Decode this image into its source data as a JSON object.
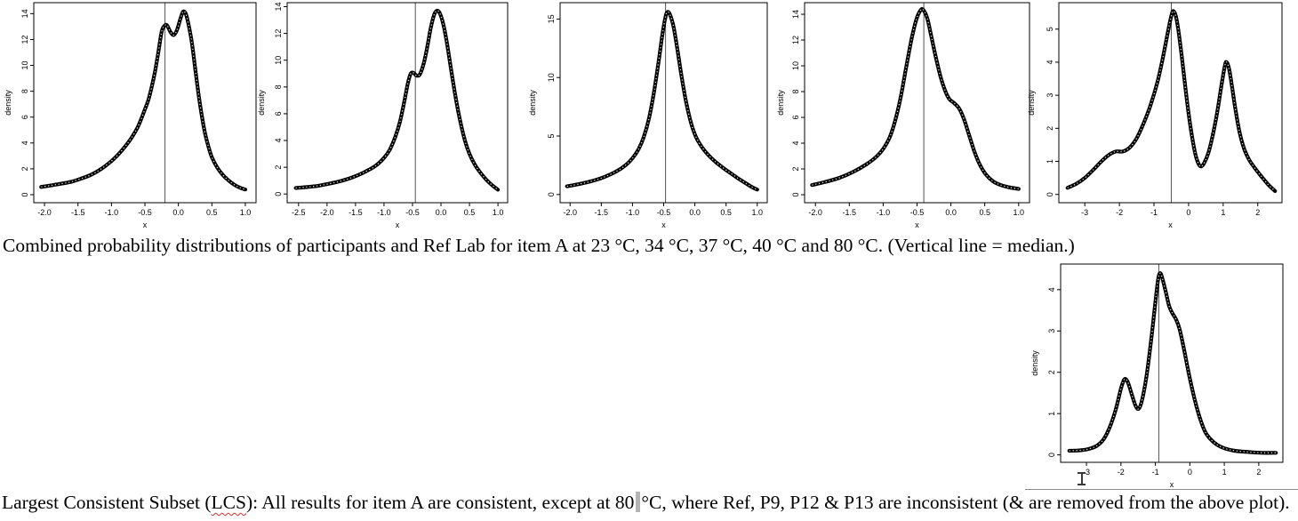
{
  "document": {
    "background": "#ffffff",
    "caption_top": "Combined probability distributions of participants and Ref Lab for item A at 23 °C, 34 °C, 37 °C, 40 °C and 80 °C. (Vertical line = median.)",
    "caption_bottom": {
      "part1": "Largest Consistent Subset (",
      "misspelled_word": "LCS",
      "part2": "): All results for item A are consistent, except at 80",
      "part3": "°C, where Ref, P9, P12 & P13 are inconsistent (& are removed from the above plot)."
    },
    "spellcheck_color": "#e03030",
    "cursor_color": "#b4b4b4"
  },
  "plot_style": {
    "curve_color": "#000000",
    "median_line_color": "#555555",
    "box_color": "#000000",
    "label_color": "#000000"
  },
  "chart_data": [
    {
      "id": "density-item-a-23c",
      "temperature": "23 °C",
      "type": "line",
      "xlabel": "x",
      "ylabel": "density",
      "xlim": [
        -2.16,
        1.16
      ],
      "ylim": [
        -0.62,
        14.85
      ],
      "xticks": {
        "values": [
          -2.0,
          -1.5,
          -1.0,
          -0.5,
          0.0,
          0.5,
          1.0
        ],
        "labels": [
          "-2.0",
          "-1.5",
          "-1.0",
          "-0.5",
          "0.0",
          "0.5",
          "1.0"
        ]
      },
      "yticks": {
        "values": [
          0,
          2,
          4,
          6,
          8,
          10,
          12,
          14
        ],
        "labels": [
          "0",
          "2",
          "4",
          "6",
          "8",
          "10",
          "12",
          "14"
        ]
      },
      "median_x": -0.2,
      "points": [
        [
          -2.05,
          0.6
        ],
        [
          -1.9,
          0.72
        ],
        [
          -1.75,
          0.85
        ],
        [
          -1.6,
          1.0
        ],
        [
          -1.45,
          1.25
        ],
        [
          -1.3,
          1.55
        ],
        [
          -1.15,
          2.0
        ],
        [
          -1.0,
          2.6
        ],
        [
          -0.9,
          3.1
        ],
        [
          -0.8,
          3.7
        ],
        [
          -0.7,
          4.4
        ],
        [
          -0.6,
          5.3
        ],
        [
          -0.5,
          6.6
        ],
        [
          -0.45,
          7.3
        ],
        [
          -0.4,
          8.3
        ],
        [
          -0.35,
          9.5
        ],
        [
          -0.3,
          11.0
        ],
        [
          -0.25,
          12.6
        ],
        [
          -0.21,
          13.05
        ],
        [
          -0.17,
          13.1
        ],
        [
          -0.12,
          12.6
        ],
        [
          -0.07,
          12.35
        ],
        [
          -0.02,
          12.75
        ],
        [
          0.03,
          13.6
        ],
        [
          0.07,
          14.15
        ],
        [
          0.11,
          14.0
        ],
        [
          0.15,
          13.2
        ],
        [
          0.2,
          11.8
        ],
        [
          0.25,
          9.8
        ],
        [
          0.3,
          7.8
        ],
        [
          0.35,
          6.1
        ],
        [
          0.4,
          4.7
        ],
        [
          0.45,
          3.7
        ],
        [
          0.5,
          2.9
        ],
        [
          0.58,
          2.1
        ],
        [
          0.66,
          1.55
        ],
        [
          0.75,
          1.1
        ],
        [
          0.85,
          0.72
        ],
        [
          0.93,
          0.52
        ],
        [
          1.0,
          0.4
        ]
      ]
    },
    {
      "id": "density-item-a-34c",
      "temperature": "34 °C",
      "type": "line",
      "xlabel": "x",
      "ylabel": "density",
      "xlim": [
        -2.7,
        1.17
      ],
      "ylim": [
        -0.65,
        14.3
      ],
      "xticks": {
        "values": [
          -2.5,
          -2.0,
          -1.5,
          -1.0,
          -0.5,
          0.0,
          0.5,
          1.0
        ],
        "labels": [
          "-2.5",
          "-2.0",
          "-1.5",
          "-1.0",
          "-0.5",
          "0.0",
          "0.5",
          "1.0"
        ]
      },
      "yticks": {
        "values": [
          0,
          2,
          4,
          6,
          8,
          10,
          12,
          14
        ],
        "labels": [
          "0",
          "2",
          "4",
          "6",
          "8",
          "10",
          "12",
          "14"
        ]
      },
      "median_x": -0.45,
      "points": [
        [
          -2.55,
          0.45
        ],
        [
          -2.35,
          0.52
        ],
        [
          -2.15,
          0.62
        ],
        [
          -1.95,
          0.78
        ],
        [
          -1.75,
          0.98
        ],
        [
          -1.55,
          1.25
        ],
        [
          -1.35,
          1.62
        ],
        [
          -1.15,
          2.1
        ],
        [
          -1.0,
          2.7
        ],
        [
          -0.9,
          3.3
        ],
        [
          -0.8,
          4.3
        ],
        [
          -0.72,
          5.4
        ],
        [
          -0.64,
          7.0
        ],
        [
          -0.58,
          8.3
        ],
        [
          -0.53,
          9.0
        ],
        [
          -0.48,
          9.05
        ],
        [
          -0.43,
          8.85
        ],
        [
          -0.37,
          8.95
        ],
        [
          -0.3,
          9.8
        ],
        [
          -0.24,
          11.0
        ],
        [
          -0.18,
          12.4
        ],
        [
          -0.12,
          13.4
        ],
        [
          -0.07,
          13.7
        ],
        [
          -0.02,
          13.5
        ],
        [
          0.04,
          12.7
        ],
        [
          0.1,
          11.4
        ],
        [
          0.17,
          9.5
        ],
        [
          0.25,
          7.4
        ],
        [
          0.33,
          5.6
        ],
        [
          0.42,
          4.0
        ],
        [
          0.5,
          3.0
        ],
        [
          0.6,
          2.15
        ],
        [
          0.7,
          1.55
        ],
        [
          0.8,
          1.05
        ],
        [
          0.9,
          0.65
        ],
        [
          1.0,
          0.32
        ]
      ]
    },
    {
      "id": "density-item-a-37c",
      "temperature": "37 °C",
      "type": "line",
      "xlabel": "x",
      "ylabel": "density",
      "xlim": [
        -2.16,
        1.16
      ],
      "ylim": [
        -0.7,
        16.4
      ],
      "xticks": {
        "values": [
          -2.0,
          -1.5,
          -1.0,
          -0.5,
          0.0,
          0.5,
          1.0
        ],
        "labels": [
          "-2.0",
          "-1.5",
          "-1.0",
          "-0.5",
          "0.0",
          "0.5",
          "1.0"
        ]
      },
      "yticks": {
        "values": [
          0,
          5,
          10,
          15
        ],
        "labels": [
          "0",
          "5",
          "10",
          "15"
        ]
      },
      "median_x": -0.47,
      "points": [
        [
          -2.05,
          0.7
        ],
        [
          -1.85,
          0.9
        ],
        [
          -1.65,
          1.15
        ],
        [
          -1.45,
          1.5
        ],
        [
          -1.25,
          2.0
        ],
        [
          -1.1,
          2.55
        ],
        [
          -1.0,
          3.1
        ],
        [
          -0.9,
          3.9
        ],
        [
          -0.82,
          4.9
        ],
        [
          -0.74,
          6.4
        ],
        [
          -0.66,
          8.6
        ],
        [
          -0.58,
          11.4
        ],
        [
          -0.52,
          13.7
        ],
        [
          -0.47,
          15.2
        ],
        [
          -0.44,
          15.6
        ],
        [
          -0.4,
          15.4
        ],
        [
          -0.34,
          14.3
        ],
        [
          -0.28,
          12.4
        ],
        [
          -0.21,
          10.0
        ],
        [
          -0.14,
          7.9
        ],
        [
          -0.06,
          6.1
        ],
        [
          0.02,
          4.9
        ],
        [
          0.12,
          4.0
        ],
        [
          0.22,
          3.35
        ],
        [
          0.34,
          2.75
        ],
        [
          0.46,
          2.25
        ],
        [
          0.58,
          1.8
        ],
        [
          0.7,
          1.35
        ],
        [
          0.82,
          0.95
        ],
        [
          0.92,
          0.62
        ],
        [
          1.0,
          0.42
        ]
      ]
    },
    {
      "id": "density-item-a-40c",
      "temperature": "40 °C",
      "type": "line",
      "xlabel": "x",
      "ylabel": "density",
      "xlim": [
        -2.16,
        1.16
      ],
      "ylim": [
        -0.62,
        14.9
      ],
      "xticks": {
        "values": [
          -2.0,
          -1.5,
          -1.0,
          -0.5,
          0.0,
          0.5,
          1.0
        ],
        "labels": [
          "-2.0",
          "-1.5",
          "-1.0",
          "-0.5",
          "0.0",
          "0.5",
          "1.0"
        ]
      },
      "yticks": {
        "values": [
          0,
          2,
          4,
          6,
          8,
          10,
          12,
          14
        ],
        "labels": [
          "0",
          "2",
          "4",
          "6",
          "8",
          "10",
          "12",
          "14"
        ]
      },
      "median_x": -0.4,
      "points": [
        [
          -2.05,
          0.75
        ],
        [
          -1.85,
          1.0
        ],
        [
          -1.65,
          1.3
        ],
        [
          -1.45,
          1.75
        ],
        [
          -1.25,
          2.35
        ],
        [
          -1.1,
          2.95
        ],
        [
          -1.0,
          3.55
        ],
        [
          -0.9,
          4.5
        ],
        [
          -0.82,
          5.8
        ],
        [
          -0.74,
          7.6
        ],
        [
          -0.66,
          9.9
        ],
        [
          -0.58,
          12.1
        ],
        [
          -0.51,
          13.6
        ],
        [
          -0.45,
          14.3
        ],
        [
          -0.41,
          14.35
        ],
        [
          -0.35,
          13.7
        ],
        [
          -0.29,
          12.3
        ],
        [
          -0.22,
          10.6
        ],
        [
          -0.15,
          9.1
        ],
        [
          -0.08,
          8.0
        ],
        [
          -0.02,
          7.4
        ],
        [
          0.05,
          7.1
        ],
        [
          0.12,
          6.7
        ],
        [
          0.19,
          5.9
        ],
        [
          0.27,
          4.6
        ],
        [
          0.35,
          3.3
        ],
        [
          0.43,
          2.3
        ],
        [
          0.52,
          1.55
        ],
        [
          0.62,
          1.05
        ],
        [
          0.72,
          0.78
        ],
        [
          0.85,
          0.58
        ],
        [
          1.0,
          0.45
        ]
      ]
    },
    {
      "id": "density-item-a-80c",
      "temperature": "80 °C",
      "type": "line",
      "xlabel": "x",
      "ylabel": "density",
      "xlim": [
        -3.75,
        2.7
      ],
      "ylim": [
        -0.25,
        5.8
      ],
      "xticks": {
        "values": [
          -3,
          -2,
          -1,
          0,
          1,
          2
        ],
        "labels": [
          "-3",
          "-2",
          "-1",
          "0",
          "1",
          "2"
        ]
      },
      "yticks": {
        "values": [
          0,
          1,
          2,
          3,
          4,
          5
        ],
        "labels": [
          "0",
          "1",
          "2",
          "3",
          "4",
          "5"
        ]
      },
      "median_x": -0.5,
      "points": [
        [
          -3.5,
          0.2
        ],
        [
          -3.25,
          0.32
        ],
        [
          -3.0,
          0.5
        ],
        [
          -2.75,
          0.75
        ],
        [
          -2.5,
          1.02
        ],
        [
          -2.3,
          1.2
        ],
        [
          -2.1,
          1.3
        ],
        [
          -1.9,
          1.3
        ],
        [
          -1.7,
          1.42
        ],
        [
          -1.5,
          1.7
        ],
        [
          -1.3,
          2.15
        ],
        [
          -1.1,
          2.7
        ],
        [
          -0.9,
          3.4
        ],
        [
          -0.75,
          4.1
        ],
        [
          -0.6,
          4.9
        ],
        [
          -0.5,
          5.4
        ],
        [
          -0.44,
          5.55
        ],
        [
          -0.37,
          5.4
        ],
        [
          -0.3,
          5.0
        ],
        [
          -0.2,
          4.2
        ],
        [
          -0.1,
          3.3
        ],
        [
          0.0,
          2.45
        ],
        [
          0.1,
          1.75
        ],
        [
          0.2,
          1.2
        ],
        [
          0.3,
          0.9
        ],
        [
          0.37,
          0.85
        ],
        [
          0.45,
          0.95
        ],
        [
          0.57,
          1.25
        ],
        [
          0.7,
          1.8
        ],
        [
          0.83,
          2.5
        ],
        [
          0.95,
          3.3
        ],
        [
          1.05,
          3.9
        ],
        [
          1.1,
          4.0
        ],
        [
          1.17,
          3.8
        ],
        [
          1.25,
          3.3
        ],
        [
          1.35,
          2.6
        ],
        [
          1.47,
          1.9
        ],
        [
          1.6,
          1.4
        ],
        [
          1.75,
          1.05
        ],
        [
          1.9,
          0.82
        ],
        [
          2.1,
          0.55
        ],
        [
          2.3,
          0.3
        ],
        [
          2.5,
          0.1
        ]
      ]
    },
    {
      "id": "density-item-a-80c-lcs",
      "temperature": "80 °C (LCS)",
      "type": "line",
      "xlabel": "x",
      "ylabel": "density",
      "xlim": [
        -3.75,
        2.7
      ],
      "ylim": [
        -0.18,
        4.62
      ],
      "xticks": {
        "values": [
          -3,
          -2,
          -1,
          0,
          1,
          2
        ],
        "labels": [
          "-3",
          "-2",
          "-1",
          "0",
          "1",
          "2"
        ]
      },
      "yticks": {
        "values": [
          0,
          1,
          2,
          3,
          4
        ],
        "labels": [
          "0",
          "1",
          "2",
          "3",
          "4"
        ]
      },
      "median_x": -0.9,
      "points": [
        [
          -3.5,
          0.1
        ],
        [
          -3.2,
          0.11
        ],
        [
          -2.95,
          0.14
        ],
        [
          -2.7,
          0.22
        ],
        [
          -2.5,
          0.38
        ],
        [
          -2.32,
          0.68
        ],
        [
          -2.15,
          1.1
        ],
        [
          -2.0,
          1.6
        ],
        [
          -1.9,
          1.83
        ],
        [
          -1.8,
          1.76
        ],
        [
          -1.68,
          1.45
        ],
        [
          -1.57,
          1.18
        ],
        [
          -1.48,
          1.12
        ],
        [
          -1.38,
          1.35
        ],
        [
          -1.25,
          1.95
        ],
        [
          -1.12,
          2.8
        ],
        [
          -1.0,
          3.7
        ],
        [
          -0.92,
          4.25
        ],
        [
          -0.86,
          4.4
        ],
        [
          -0.79,
          4.25
        ],
        [
          -0.7,
          3.95
        ],
        [
          -0.6,
          3.6
        ],
        [
          -0.5,
          3.42
        ],
        [
          -0.4,
          3.28
        ],
        [
          -0.3,
          3.05
        ],
        [
          -0.18,
          2.6
        ],
        [
          -0.05,
          2.05
        ],
        [
          0.08,
          1.55
        ],
        [
          0.2,
          1.15
        ],
        [
          0.32,
          0.82
        ],
        [
          0.45,
          0.55
        ],
        [
          0.6,
          0.38
        ],
        [
          0.78,
          0.25
        ],
        [
          1.0,
          0.16
        ],
        [
          1.3,
          0.1
        ],
        [
          1.7,
          0.07
        ],
        [
          2.1,
          0.05
        ],
        [
          2.5,
          0.05
        ]
      ]
    }
  ]
}
